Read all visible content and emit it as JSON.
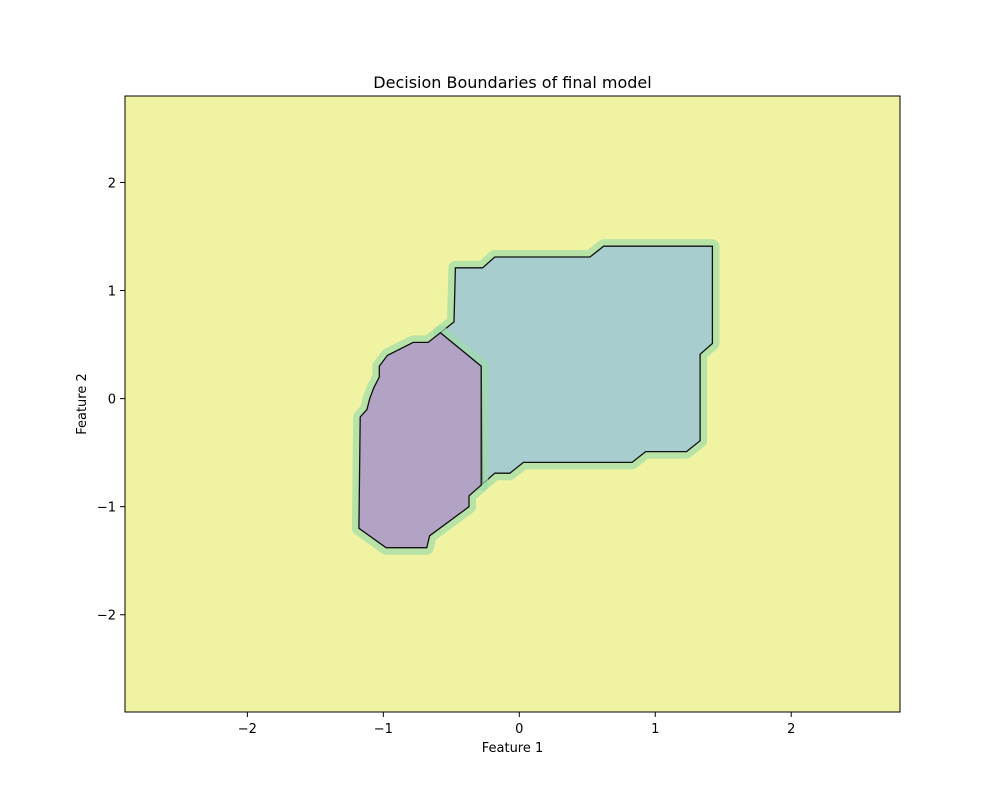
{
  "chart_data": {
    "type": "contour",
    "title": "Decision Boundaries of final model",
    "xlabel": "Feature 1",
    "ylabel": "Feature 2",
    "xlim": [
      -2.9,
      2.8
    ],
    "ylim": [
      -2.9,
      2.8
    ],
    "xticks": [
      -2,
      -1,
      0,
      1,
      2
    ],
    "yticks": [
      -2,
      -1,
      0,
      1,
      2
    ],
    "grid": false,
    "legend": "none",
    "classes": [
      {
        "class": 0,
        "color": "#b2a3c4",
        "boundary": [
          [
            -0.58,
            0.61
          ],
          [
            -0.67,
            0.52
          ],
          [
            -0.73,
            0.52
          ],
          [
            -0.78,
            0.52
          ],
          [
            -0.97,
            0.4
          ],
          [
            -1.03,
            0.3
          ],
          [
            -1.03,
            0.2
          ],
          [
            -1.07,
            0.1
          ],
          [
            -1.1,
            0.0
          ],
          [
            -1.12,
            -0.1
          ],
          [
            -1.17,
            -0.17
          ],
          [
            -1.18,
            -1.2
          ],
          [
            -0.98,
            -1.38
          ],
          [
            -0.68,
            -1.38
          ],
          [
            -0.66,
            -1.27
          ],
          [
            -0.37,
            -1.0
          ],
          [
            -0.37,
            -0.9
          ],
          [
            -0.28,
            -0.8
          ],
          [
            -0.28,
            0.3
          ]
        ]
      },
      {
        "class": 1,
        "color": "#a8cdcf",
        "boundary": [
          [
            -0.48,
            0.71
          ],
          [
            -0.47,
            1.21
          ],
          [
            -0.27,
            1.21
          ],
          [
            -0.18,
            1.31
          ],
          [
            0.52,
            1.31
          ],
          [
            0.62,
            1.41
          ],
          [
            1.42,
            1.41
          ],
          [
            1.42,
            0.51
          ],
          [
            1.33,
            0.41
          ],
          [
            1.33,
            -0.39
          ],
          [
            1.23,
            -0.49
          ],
          [
            0.93,
            -0.49
          ],
          [
            0.83,
            -0.59
          ],
          [
            0.03,
            -0.59
          ],
          [
            -0.07,
            -0.69
          ],
          [
            -0.18,
            -0.69
          ],
          [
            -0.27,
            -0.79
          ],
          [
            -0.28,
            0.3
          ],
          [
            -0.58,
            0.61
          ]
        ]
      },
      {
        "class": 2,
        "color": "#f0f3a2"
      }
    ]
  }
}
